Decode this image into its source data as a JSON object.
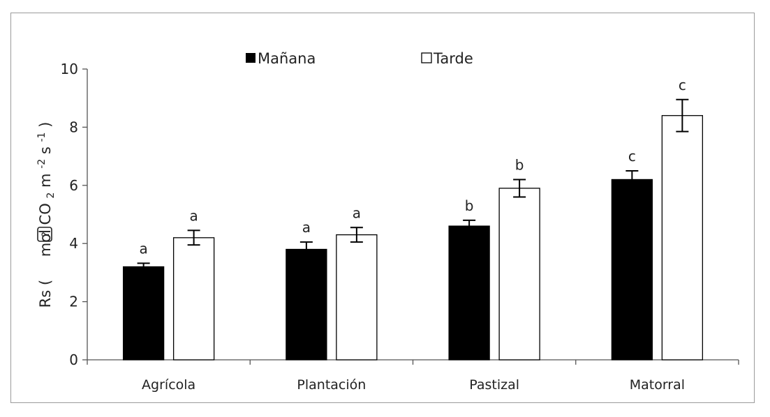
{
  "chart_data": {
    "type": "bar",
    "categories": [
      "Agrícola",
      "Plantación",
      "Pastizal",
      "Matorral"
    ],
    "series": [
      {
        "name": "Mañana",
        "values": [
          3.2,
          3.8,
          4.6,
          6.2
        ],
        "errors": [
          0.12,
          0.25,
          0.2,
          0.3
        ],
        "color": "#000000"
      },
      {
        "name": "Tarde",
        "values": [
          4.2,
          4.3,
          5.9,
          8.4
        ],
        "errors": [
          0.25,
          0.25,
          0.3,
          0.55
        ],
        "color": "#ffffff"
      }
    ],
    "significance": [
      [
        "a",
        "a"
      ],
      [
        "a",
        "a"
      ],
      [
        "b",
        "b"
      ],
      [
        "c",
        "c"
      ]
    ],
    "ylabel": {
      "prefix": "Rs (",
      "missing_glyph": "?",
      "mol": "mol CO",
      "sub2": "2",
      "m": " m",
      "sup_m": "-2",
      "s": " s",
      "sup_s": "-1",
      "close": ")"
    },
    "ylim": [
      0,
      10
    ],
    "yticks": [
      0,
      2,
      4,
      6,
      8,
      10
    ],
    "legend_position": "top-center",
    "grid": false
  }
}
